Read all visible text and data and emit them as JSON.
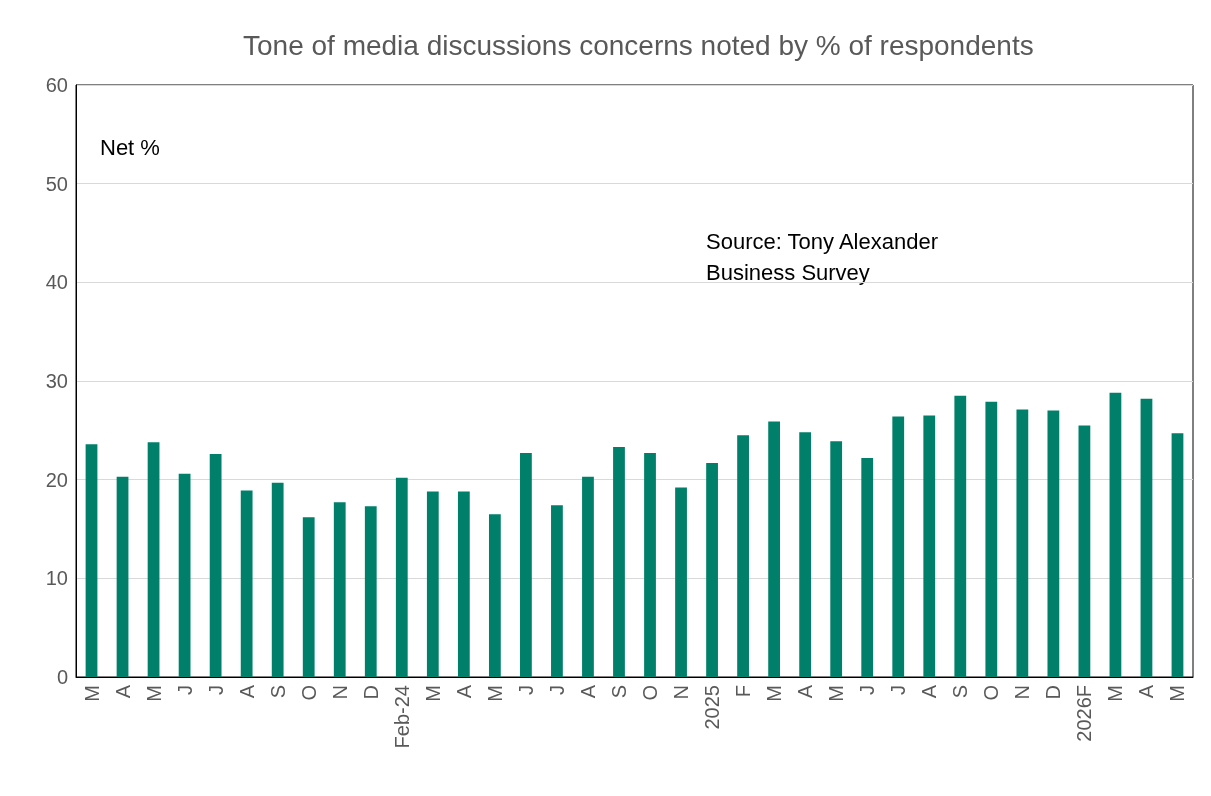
{
  "chart_data": {
    "type": "bar",
    "title": "Tone of media discussions concerns noted by % of respondents",
    "categories": [
      "M",
      "A",
      "M",
      "J",
      "J",
      "A",
      "S",
      "O",
      "N",
      "D",
      "Feb-24",
      "M",
      "A",
      "M",
      "J",
      "J",
      "A",
      "S",
      "O",
      "N",
      "2025",
      "F",
      "M",
      "A",
      "M",
      "J",
      "J",
      "A",
      "S",
      "O",
      "N",
      "D",
      "2026F",
      "M",
      "A",
      "M"
    ],
    "values": [
      23.6,
      20.3,
      23.8,
      20.6,
      22.6,
      18.9,
      19.7,
      16.2,
      17.7,
      17.3,
      20.2,
      18.8,
      18.8,
      16.5,
      22.7,
      17.4,
      20.3,
      23.3,
      22.7,
      19.2,
      21.7,
      24.5,
      25.9,
      24.8,
      23.9,
      22.2,
      26.4,
      26.5,
      28.5,
      27.9,
      27.1,
      27.0,
      25.5,
      28.8,
      28.2,
      24.7
    ],
    "color": "#00806a",
    "ylim": [
      0,
      60
    ],
    "yticks": [
      0,
      10,
      20,
      30,
      40,
      50,
      60
    ],
    "grid": "y",
    "annotations": [
      "Net %",
      "Source: Tony Alexander Business Survey"
    ]
  }
}
